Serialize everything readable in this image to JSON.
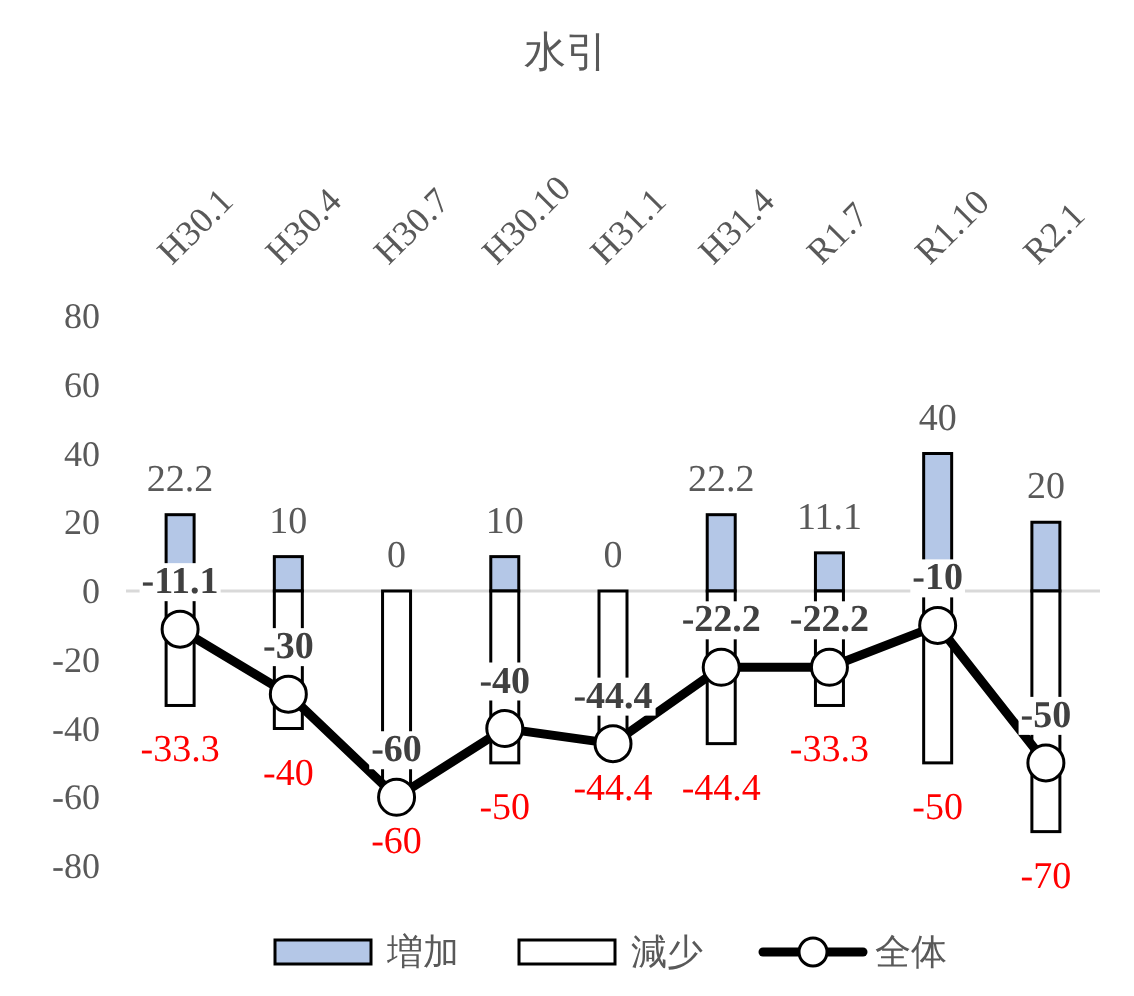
{
  "chart_data": {
    "type": "bar",
    "title": "水引",
    "categories": [
      "H30.1",
      "H30.4",
      "H30.7",
      "H30.10",
      "H31.1",
      "H31.4",
      "R1.7",
      "R1.10",
      "R2.1"
    ],
    "series": [
      {
        "name": "増加",
        "color": "#b4c7e7",
        "values": [
          22.2,
          10,
          0,
          10,
          0,
          22.2,
          11.1,
          40,
          20
        ]
      },
      {
        "name": "減少",
        "color": "#ffffff",
        "values": [
          -33.3,
          -40,
          -60,
          -50,
          -44.4,
          -44.4,
          -33.3,
          -50,
          -70
        ]
      },
      {
        "name": "全体",
        "type": "line",
        "color": "#000000",
        "marker": "circle",
        "values": [
          -11.1,
          -30,
          -60,
          -40,
          -44.4,
          -22.2,
          -22.2,
          -10,
          -50
        ]
      }
    ],
    "stacked": true,
    "ylim": [
      -80,
      80
    ],
    "yticks": [
      -80,
      -60,
      -40,
      -20,
      0,
      20,
      40,
      60,
      80
    ],
    "ref_lines": [
      {
        "axis": "y",
        "value": 0,
        "color": "#d9d9d9"
      }
    ],
    "grid": false,
    "legend": "bottom",
    "data_labels": true
  }
}
